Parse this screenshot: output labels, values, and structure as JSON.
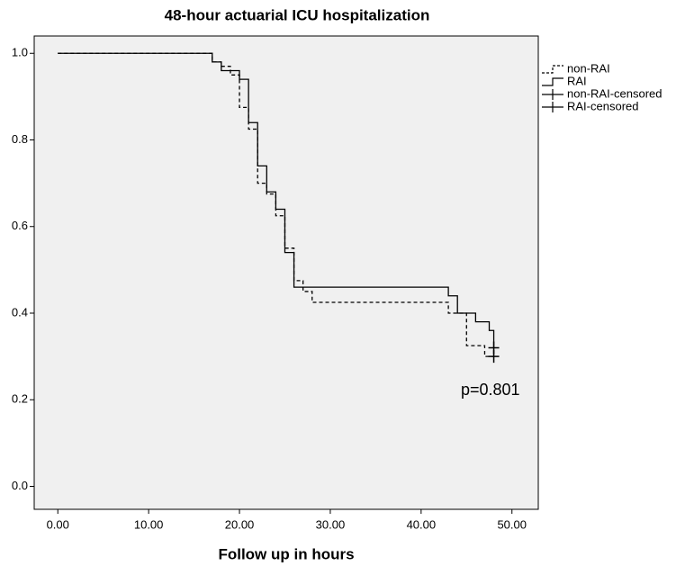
{
  "chart_data": {
    "type": "step",
    "title": "48-hour actuarial ICU hospitalization",
    "x_label": "Follow up in hours",
    "annotation": "p=0.801",
    "xlim": [
      -2.6,
      52.9
    ],
    "ylim": [
      -0.053,
      1.04
    ],
    "xticks": [
      {
        "value": 0,
        "label": "0.00"
      },
      {
        "value": 10,
        "label": "10.00"
      },
      {
        "value": 20,
        "label": "20.00"
      },
      {
        "value": 30,
        "label": "30.00"
      },
      {
        "value": 40,
        "label": "40.00"
      },
      {
        "value": 50,
        "label": "50.00"
      }
    ],
    "yticks": [
      {
        "value": 0,
        "label": "0.0"
      },
      {
        "value": 0.2,
        "label": "0.2"
      },
      {
        "value": 0.4,
        "label": "0.4"
      },
      {
        "value": 0.6,
        "label": "0.6"
      },
      {
        "value": 0.8,
        "label": "0.8"
      },
      {
        "value": 1,
        "label": "1.0"
      }
    ],
    "series": [
      {
        "name": "non-RAI",
        "color": "#000000",
        "dash": true,
        "x": [
          0,
          17,
          18,
          19,
          20,
          21,
          22,
          23,
          24,
          25,
          26,
          27,
          28,
          43,
          45,
          47,
          48
        ],
        "values": [
          1.0,
          0.98,
          0.97,
          0.95,
          0.875,
          0.825,
          0.7,
          0.675,
          0.625,
          0.55,
          0.475,
          0.45,
          0.425,
          0.4,
          0.325,
          0.3,
          0.3
        ]
      },
      {
        "name": "RAI",
        "color": "#000000",
        "dash": false,
        "x": [
          0,
          17,
          18,
          20,
          21,
          22,
          23,
          24,
          25,
          26,
          43,
          44,
          46,
          47.5,
          48
        ],
        "values": [
          1.0,
          0.98,
          0.96,
          0.94,
          0.84,
          0.74,
          0.68,
          0.64,
          0.54,
          0.46,
          0.44,
          0.4,
          0.38,
          0.36,
          0.32
        ]
      },
      {
        "name": "non-RAI-censored",
        "color": "#000000",
        "marker": "plus",
        "x": [
          48
        ],
        "values": [
          0.3
        ]
      },
      {
        "name": "RAI-censored",
        "color": "#000000",
        "marker": "plus",
        "x": [
          48
        ],
        "values": [
          0.32
        ]
      }
    ]
  }
}
